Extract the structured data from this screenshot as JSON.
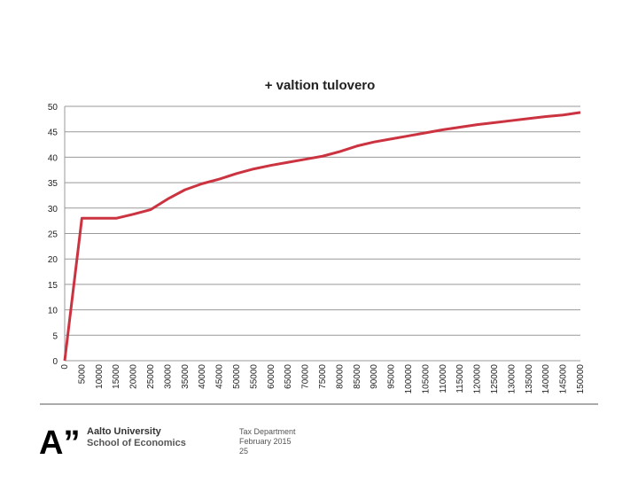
{
  "chart_data": {
    "type": "line",
    "title": "+ valtion tulovero",
    "categories": [
      "0",
      "5000",
      "10000",
      "15000",
      "20000",
      "25000",
      "30000",
      "35000",
      "40000",
      "45000",
      "50000",
      "55000",
      "60000",
      "65000",
      "70000",
      "75000",
      "80000",
      "85000",
      "90000",
      "95000",
      "100000",
      "105000",
      "110000",
      "115000",
      "120000",
      "125000",
      "130000",
      "135000",
      "140000",
      "145000",
      "150000"
    ],
    "values": [
      0,
      28,
      28,
      28,
      28.8,
      29.7,
      31.8,
      33.6,
      34.8,
      35.7,
      36.8,
      37.7,
      38.4,
      39.0,
      39.6,
      40.2,
      41.1,
      42.2,
      43.0,
      43.6,
      44.2,
      44.8,
      45.4,
      45.9,
      46.4,
      46.8,
      47.2,
      47.6,
      48.0,
      48.3,
      48.8
    ],
    "color": "#cc3340",
    "ylim": [
      0,
      50
    ],
    "yticks": [
      0,
      5,
      10,
      15,
      20,
      25,
      30,
      35,
      40,
      45,
      50
    ],
    "grid": true
  },
  "footer": {
    "logo": "A”",
    "university": "Aalto University",
    "school": "School of Economics",
    "department": "Tax Department",
    "date": "February 2015",
    "page": "25"
  }
}
